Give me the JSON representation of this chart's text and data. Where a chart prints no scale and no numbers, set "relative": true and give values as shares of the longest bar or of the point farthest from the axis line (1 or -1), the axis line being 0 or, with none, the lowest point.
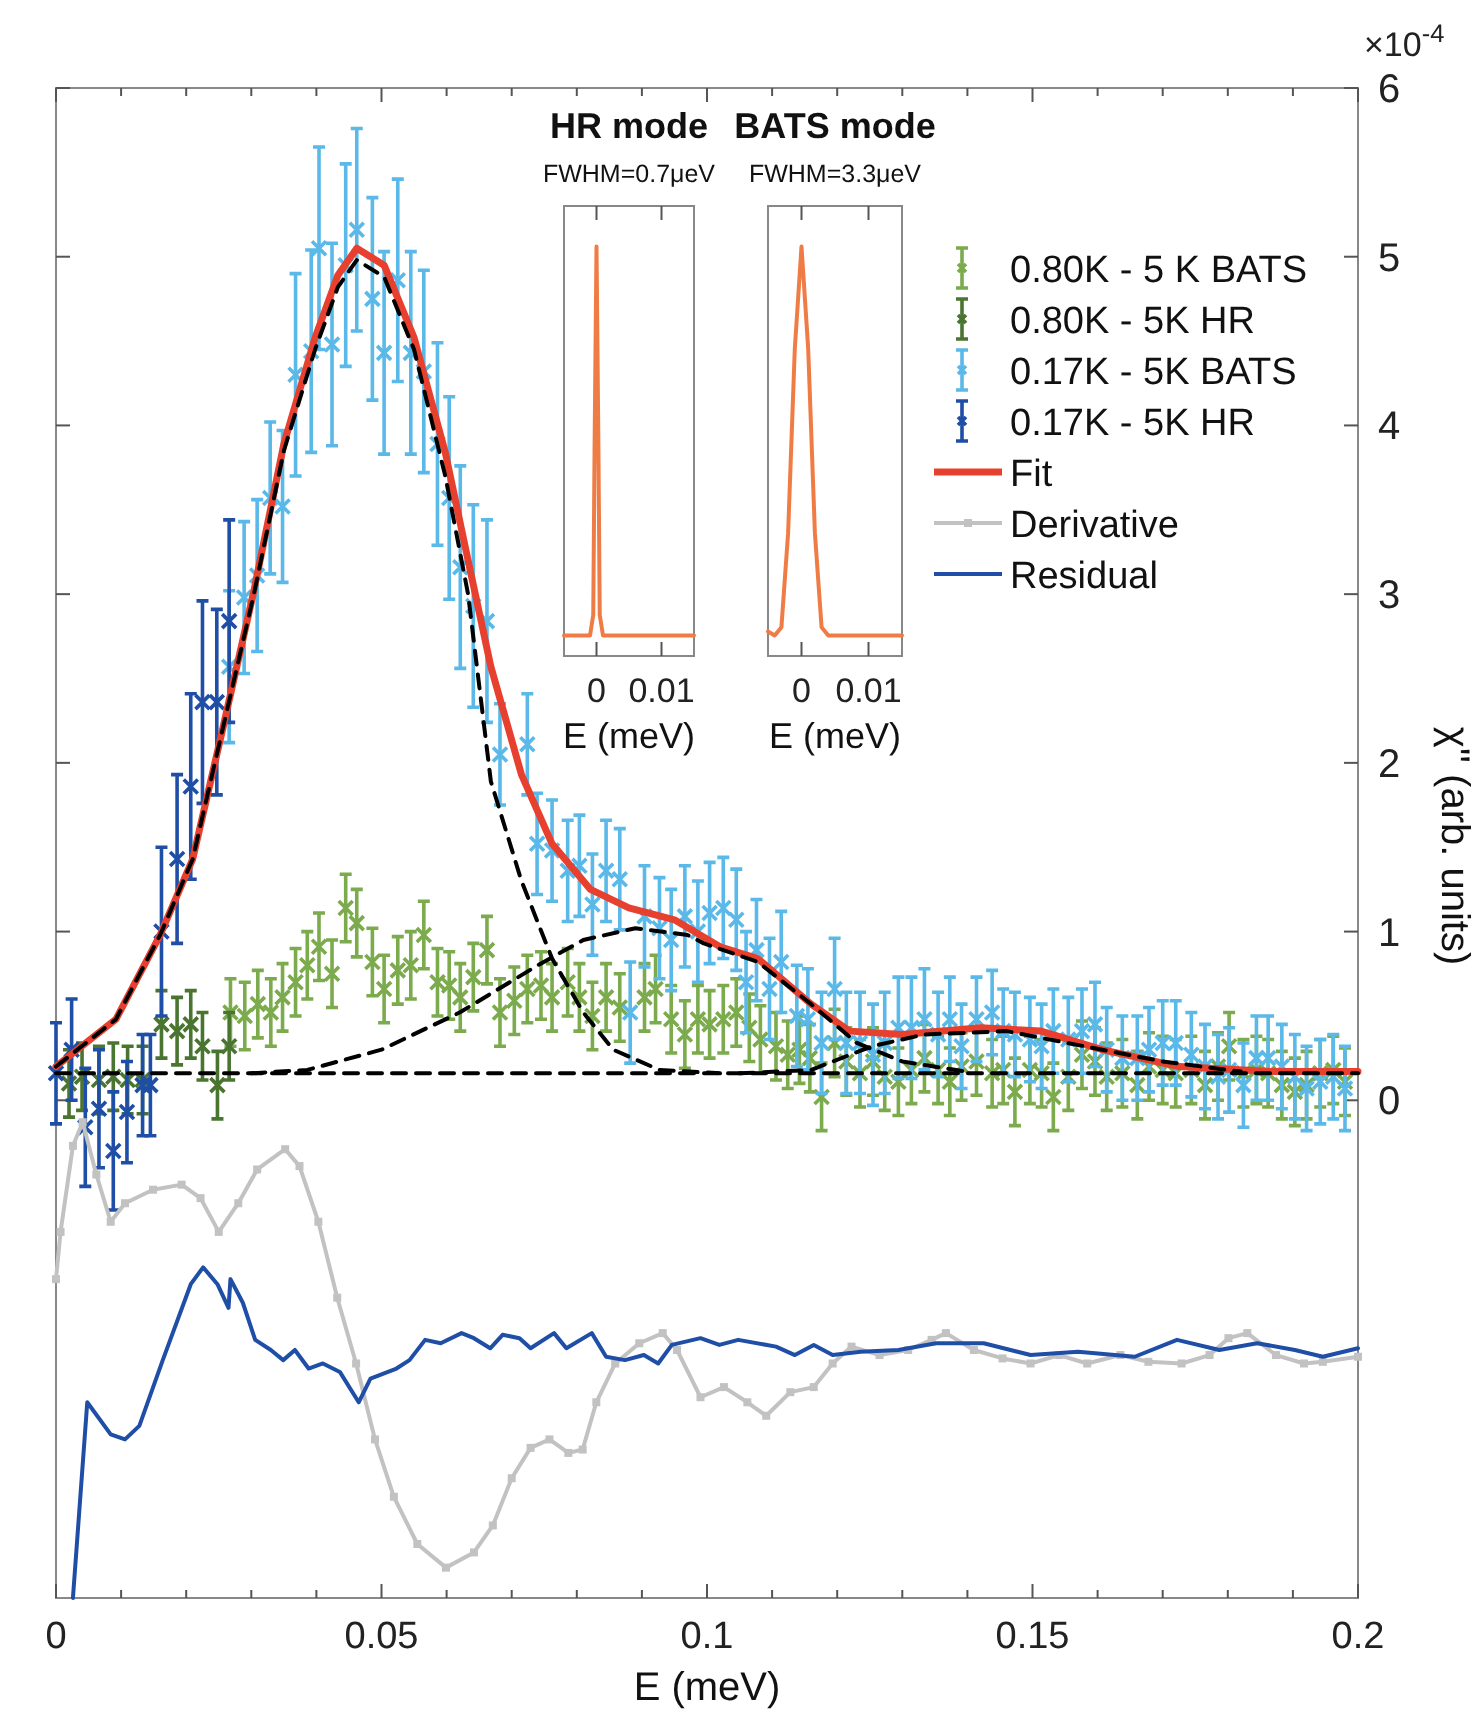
{
  "chart_data": [
    {
      "type": "scatter",
      "xlabel": "E (meV)",
      "ylabel": "χ'' (arb. units)",
      "annotations": [
        "×10$^{-4}$"
      ],
      "xlim": [
        0,
        0.2
      ],
      "ylim": [
        -2.95,
        6
      ],
      "xticks": [
        0,
        {
          "value": 0.01,
          "label": null
        },
        {
          "value": 0.02,
          "label": null
        },
        {
          "value": 0.03,
          "label": null
        },
        {
          "value": 0.04,
          "label": null
        },
        0.05,
        {
          "value": 0.06,
          "label": null
        },
        {
          "value": 0.07,
          "label": null
        },
        {
          "value": 0.08,
          "label": null
        },
        {
          "value": 0.09,
          "label": null
        },
        0.1,
        {
          "value": 0.11,
          "label": null
        },
        {
          "value": 0.12,
          "label": null
        },
        {
          "value": 0.13,
          "label": null
        },
        {
          "value": 0.14,
          "label": null
        },
        0.15,
        {
          "value": 0.16,
          "label": null
        },
        {
          "value": 0.17,
          "label": null
        },
        {
          "value": 0.18,
          "label": null
        },
        {
          "value": 0.19,
          "label": null
        },
        0.2
      ],
      "yticks": [
        0,
        1,
        2,
        3,
        4,
        5,
        6
      ],
      "legend": "top right",
      "marker": "cross",
      "series": [
        {
          "name": "0.80K - 5 K BATS",
          "color": "#7bab4c",
          "x": [
            0.0268,
            0.029,
            0.031,
            0.033,
            0.0348,
            0.0368,
            0.0386,
            0.0404,
            0.0424,
            0.0445,
            0.0462,
            0.0486,
            0.0504,
            0.0525,
            0.0545,
            0.0565,
            0.0586,
            0.0604,
            0.0621,
            0.0641,
            0.0662,
            0.0682,
            0.0704,
            0.0724,
            0.0745,
            0.0762,
            0.0786,
            0.0804,
            0.0824,
            0.0845,
            0.0866,
            0.0904,
            0.0921,
            0.0945,
            0.0966,
            0.0986,
            0.1004,
            0.1025,
            0.1045,
            0.1065,
            0.1082,
            0.1106,
            0.1124,
            0.1142,
            0.1158,
            0.1176,
            0.1196,
            0.1214,
            0.1235,
            0.1255,
            0.1273,
            0.1294,
            0.1314,
            0.1334,
            0.1355,
            0.1373,
            0.1391,
            0.1414,
            0.1438,
            0.1455,
            0.1473,
            0.1496,
            0.1514,
            0.1532,
            0.1555,
            0.1576,
            0.1596,
            0.1614,
            0.1638,
            0.1661,
            0.1679,
            0.17,
            0.172,
            0.1744,
            0.1765,
            0.1785,
            0.1802,
            0.1824,
            0.1844,
            0.1862,
            0.1883,
            0.1903,
            0.1921,
            0.1942,
            0.1962,
            0.198
          ],
          "values": [
            0.52,
            0.5,
            0.57,
            0.52,
            0.61,
            0.7,
            0.8,
            0.91,
            0.75,
            1.14,
            1.05,
            0.82,
            0.66,
            0.77,
            0.8,
            0.98,
            0.7,
            0.68,
            0.61,
            0.73,
            0.89,
            0.52,
            0.59,
            0.66,
            0.68,
            0.61,
            0.7,
            0.61,
            0.5,
            0.61,
            0.55,
            0.61,
            0.66,
            0.48,
            0.39,
            0.48,
            0.45,
            0.48,
            0.52,
            0.43,
            0.36,
            0.32,
            0.27,
            0.3,
            0.25,
            0.02,
            0.34,
            0.23,
            0.16,
            0.23,
            0.14,
            0.11,
            0.18,
            0.25,
            0.18,
            0.11,
            0.2,
            0.23,
            0.16,
            0.18,
            0.05,
            0.18,
            0.16,
            0.02,
            0.14,
            0.27,
            0.23,
            0.14,
            0.16,
            0.09,
            0.2,
            0.18,
            0.16,
            0.18,
            0.09,
            0.2,
            0.32,
            0.16,
            0.18,
            0.16,
            0.09,
            0.05,
            0.09,
            0.16,
            0.18,
            0.11
          ],
          "errors": [
            0.2,
            0.2,
            0.2,
            0.2,
            0.2,
            0.2,
            0.2,
            0.2,
            0.2,
            0.2,
            0.2,
            0.2,
            0.2,
            0.2,
            0.2,
            0.2,
            0.2,
            0.2,
            0.2,
            0.2,
            0.2,
            0.2,
            0.2,
            0.2,
            0.2,
            0.2,
            0.2,
            0.2,
            0.2,
            0.2,
            0.2,
            0.2,
            0.2,
            0.2,
            0.2,
            0.2,
            0.2,
            0.2,
            0.2,
            0.2,
            0.2,
            0.2,
            0.2,
            0.2,
            0.2,
            0.2,
            0.2,
            0.2,
            0.2,
            0.2,
            0.2,
            0.2,
            0.2,
            0.2,
            0.2,
            0.2,
            0.2,
            0.2,
            0.2,
            0.2,
            0.2,
            0.2,
            0.2,
            0.2,
            0.2,
            0.2,
            0.2,
            0.2,
            0.2,
            0.2,
            0.2,
            0.2,
            0.2,
            0.2,
            0.2,
            0.2,
            0.2,
            0.2,
            0.2,
            0.2,
            0.2,
            0.2,
            0.2,
            0.2,
            0.2,
            0.2
          ]
        },
        {
          "name": "0.80K - 5K HR",
          "color": "#4a7530",
          "x": [
            0.002,
            0.004,
            0.0066,
            0.0088,
            0.011,
            0.0133,
            0.0162,
            0.0186,
            0.0207,
            0.0225,
            0.0248,
            0.0266
          ],
          "values": [
            0.1,
            0.14,
            0.12,
            0.14,
            0.12,
            0.12,
            0.45,
            0.41,
            0.45,
            0.32,
            0.09,
            0.32
          ],
          "errors": [
            0.2,
            0.2,
            0.2,
            0.2,
            0.2,
            0.2,
            0.2,
            0.2,
            0.2,
            0.2,
            0.2,
            0.2
          ]
        },
        {
          "name": "0.17K - 5K BATS",
          "color": "#5ab9e8",
          "x": [
            0.0266,
            0.0289,
            0.0309,
            0.0329,
            0.0348,
            0.0368,
            0.0392,
            0.0404,
            0.0424,
            0.0445,
            0.0462,
            0.0486,
            0.0504,
            0.0525,
            0.0545,
            0.0565,
            0.0586,
            0.0604,
            0.0621,
            0.0641,
            0.0662,
            0.0682,
            0.0724,
            0.0739,
            0.0762,
            0.0786,
            0.0804,
            0.0824,
            0.0845,
            0.0866,
            0.0882,
            0.0904,
            0.0927,
            0.0945,
            0.0966,
            0.0986,
            0.1004,
            0.1025,
            0.1045,
            0.106,
            0.1076,
            0.1096,
            0.1114,
            0.1138,
            0.1155,
            0.1176,
            0.1196,
            0.1214,
            0.1235,
            0.1255,
            0.1273,
            0.1294,
            0.1314,
            0.1334,
            0.1355,
            0.1373,
            0.1391,
            0.1414,
            0.1438,
            0.1455,
            0.1473,
            0.1496,
            0.1514,
            0.1532,
            0.1555,
            0.1576,
            0.1596,
            0.1614,
            0.1638,
            0.1661,
            0.1679,
            0.17,
            0.172,
            0.1744,
            0.1765,
            0.1785,
            0.1802,
            0.1824,
            0.1844,
            0.1862,
            0.1883,
            0.1903,
            0.1921,
            0.1942,
            0.1962,
            0.198
          ],
          "values": [
            2.57,
            2.98,
            3.11,
            3.57,
            3.52,
            4.3,
            4.44,
            5.05,
            4.48,
            4.95,
            5.16,
            4.75,
            4.43,
            4.86,
            4.43,
            4.32,
            3.89,
            3.57,
            3.16,
            2.93,
            2.84,
            2.05,
            2.11,
            1.52,
            1.48,
            1.36,
            1.39,
            1.16,
            1.36,
            1.31,
            0.52,
            1.09,
            1.02,
            0.95,
            1.09,
            1.0,
            1.11,
            1.14,
            1.07,
            0.7,
            0.89,
            0.66,
            0.82,
            0.5,
            0.48,
            0.34,
            0.66,
            0.34,
            0.34,
            0.27,
            0.34,
            0.43,
            0.43,
            0.48,
            0.39,
            0.48,
            0.32,
            0.48,
            0.52,
            0.41,
            0.39,
            0.36,
            0.32,
            0.41,
            0.36,
            0.41,
            0.45,
            0.3,
            0.25,
            0.25,
            0.3,
            0.34,
            0.34,
            0.27,
            0.2,
            0.14,
            0.18,
            0.09,
            0.25,
            0.25,
            0.2,
            0.14,
            0.07,
            0.11,
            0.14,
            0.07
          ],
          "errors": [
            0.45,
            0.45,
            0.45,
            0.45,
            0.45,
            0.6,
            0.6,
            0.6,
            0.6,
            0.6,
            0.6,
            0.6,
            0.6,
            0.6,
            0.6,
            0.6,
            0.6,
            0.6,
            0.6,
            0.6,
            0.6,
            0.3,
            0.3,
            0.3,
            0.3,
            0.3,
            0.3,
            0.3,
            0.3,
            0.3,
            0.3,
            0.3,
            0.3,
            0.3,
            0.3,
            0.3,
            0.3,
            0.3,
            0.3,
            0.3,
            0.3,
            0.3,
            0.3,
            0.3,
            0.3,
            0.3,
            0.3,
            0.3,
            0.3,
            0.3,
            0.3,
            0.3,
            0.3,
            0.3,
            0.25,
            0.25,
            0.25,
            0.25,
            0.25,
            0.25,
            0.25,
            0.25,
            0.25,
            0.25,
            0.25,
            0.25,
            0.25,
            0.25,
            0.25,
            0.25,
            0.25,
            0.25,
            0.25,
            0.25,
            0.25,
            0.25,
            0.25,
            0.25,
            0.25,
            0.25,
            0.25,
            0.25,
            0.25,
            0.25,
            0.25,
            0.25
          ]
        },
        {
          "name": "0.17K - 5K HR",
          "color": "#1f4ea6",
          "x": [
            0,
            0.0024,
            0.0045,
            0.0066,
            0.0088,
            0.0109,
            0.0133,
            0.0145,
            0.0162,
            0.0186,
            0.0207,
            0.0225,
            0.0247,
            0.0266
          ],
          "values": [
            0.16,
            0.3,
            -0.16,
            -0.05,
            -0.3,
            -0.07,
            0.09,
            0.09,
            1.0,
            1.43,
            1.86,
            2.36,
            2.36,
            2.84
          ],
          "errors": [
            0.3,
            0.3,
            0.35,
            0.35,
            0.35,
            0.3,
            0.3,
            0.3,
            0.5,
            0.5,
            0.55,
            0.6,
            0.55,
            0.6
          ]
        },
        {
          "name": "Fit",
          "type": "line",
          "color": "#e8402f",
          "marker": "none",
          "x": [
            0,
            0.0092,
            0.016,
            0.021,
            0.0256,
            0.0304,
            0.035,
            0.0398,
            0.0433,
            0.0462,
            0.0504,
            0.055,
            0.0598,
            0.0633,
            0.0668,
            0.0715,
            0.0762,
            0.0821,
            0.088,
            0.095,
            0.102,
            0.1078,
            0.116,
            0.1219,
            0.13,
            0.142,
            0.1513,
            0.1607,
            0.1725,
            0.1866,
            0.2
          ],
          "values": [
            0.2,
            0.48,
            0.98,
            1.43,
            2.2,
            3.02,
            3.89,
            4.52,
            4.89,
            5.05,
            4.95,
            4.52,
            3.84,
            3.2,
            2.57,
            1.93,
            1.52,
            1.25,
            1.14,
            1.07,
            0.91,
            0.84,
            0.57,
            0.41,
            0.39,
            0.43,
            0.41,
            0.3,
            0.2,
            0.17,
            0.17
          ]
        },
        {
          "name": "Derivative",
          "type": "line",
          "color": "#c2c2c2",
          "marker": "square",
          "x": [
            0,
            0.0007,
            0.0026,
            0.0041,
            0.0062,
            0.0084,
            0.0106,
            0.0149,
            0.0193,
            0.0222,
            0.025,
            0.028,
            0.0309,
            0.0352,
            0.0374,
            0.0403,
            0.0432,
            0.0461,
            0.049,
            0.0519,
            0.0555,
            0.0599,
            0.0642,
            0.0671,
            0.07,
            0.0729,
            0.0758,
            0.0787,
            0.0809,
            0.083,
            0.0859,
            0.0896,
            0.0932,
            0.0954,
            0.099,
            0.1026,
            0.1062,
            0.1091,
            0.1128,
            0.1164,
            0.1193,
            0.1222,
            0.1265,
            0.1309,
            0.1345,
            0.1367,
            0.141,
            0.1454,
            0.1497,
            0.1541,
            0.1584,
            0.1635,
            0.1678,
            0.1729,
            0.1772,
            0.1801,
            0.183,
            0.1874,
            0.1917,
            0.1946,
            0.2
          ],
          "values": [
            -1.06,
            -0.78,
            -0.27,
            -0.13,
            -0.44,
            -0.72,
            -0.61,
            -0.53,
            -0.5,
            -0.58,
            -0.78,
            -0.61,
            -0.41,
            -0.29,
            -0.39,
            -0.72,
            -1.17,
            -1.56,
            -2.01,
            -2.35,
            -2.63,
            -2.77,
            -2.68,
            -2.52,
            -2.24,
            -2.06,
            -2.01,
            -2.09,
            -2.07,
            -1.79,
            -1.56,
            -1.44,
            -1.38,
            -1.48,
            -1.76,
            -1.7,
            -1.79,
            -1.87,
            -1.73,
            -1.7,
            -1.56,
            -1.46,
            -1.51,
            -1.48,
            -1.42,
            -1.38,
            -1.48,
            -1.53,
            -1.56,
            -1.51,
            -1.56,
            -1.51,
            -1.55,
            -1.56,
            -1.51,
            -1.41,
            -1.38,
            -1.51,
            -1.56,
            -1.55,
            -1.52
          ]
        },
        {
          "name": "Residual",
          "type": "line",
          "color": "#1f4ea6",
          "marker": "none",
          "x": [
            0.0026,
            0.0048,
            0.0084,
            0.0106,
            0.0128,
            0.0164,
            0.0207,
            0.0226,
            0.0248,
            0.0265,
            0.0268,
            0.0287,
            0.0306,
            0.033,
            0.0349,
            0.0367,
            0.0388,
            0.041,
            0.0436,
            0.0465,
            0.0483,
            0.0523,
            0.0543,
            0.0567,
            0.0591,
            0.0623,
            0.0642,
            0.0667,
            0.0686,
            0.0712,
            0.0729,
            0.0765,
            0.0784,
            0.0823,
            0.0845,
            0.0874,
            0.0903,
            0.0925,
            0.0946,
            0.099,
            0.1019,
            0.1048,
            0.1106,
            0.1135,
            0.1164,
            0.1193,
            0.1236,
            0.1294,
            0.1352,
            0.1425,
            0.1497,
            0.157,
            0.1657,
            0.1722,
            0.1787,
            0.1845,
            0.1903,
            0.1946,
            0.2
          ],
          "values": [
            -2.95,
            -1.79,
            -1.98,
            -2.01,
            -1.93,
            -1.54,
            -1.09,
            -0.99,
            -1.09,
            -1.23,
            -1.06,
            -1.2,
            -1.42,
            -1.48,
            -1.54,
            -1.48,
            -1.59,
            -1.56,
            -1.61,
            -1.79,
            -1.65,
            -1.59,
            -1.54,
            -1.42,
            -1.44,
            -1.38,
            -1.41,
            -1.47,
            -1.39,
            -1.41,
            -1.47,
            -1.38,
            -1.47,
            -1.38,
            -1.52,
            -1.54,
            -1.51,
            -1.56,
            -1.45,
            -1.41,
            -1.45,
            -1.42,
            -1.46,
            -1.51,
            -1.45,
            -1.51,
            -1.49,
            -1.48,
            -1.44,
            -1.44,
            -1.51,
            -1.49,
            -1.52,
            -1.42,
            -1.48,
            -1.44,
            -1.48,
            -1.52,
            -1.47
          ]
        },
        {
          "type": "line",
          "color": "#000000",
          "line_style": "dashed",
          "marker": "none",
          "x": [
            0,
            0.2
          ],
          "values": [
            0.16,
            0.16
          ]
        },
        {
          "type": "line",
          "color": "#000000",
          "line_style": "dashed",
          "marker": "none",
          "x": [
            0,
            0.0092,
            0.016,
            0.021,
            0.0256,
            0.0304,
            0.035,
            0.0398,
            0.0433,
            0.0462,
            0.0504,
            0.055,
            0.0598,
            0.0633,
            0.0668,
            0.0715,
            0.0762,
            0.081,
            0.0856,
            0.0927,
            0.102
          ],
          "values": [
            0.2,
            0.48,
            0.98,
            1.43,
            2.2,
            3.0,
            3.85,
            4.45,
            4.82,
            4.98,
            4.88,
            4.45,
            3.7,
            3.0,
            1.89,
            1.3,
            0.84,
            0.52,
            0.3,
            0.18,
            0.16
          ]
        },
        {
          "type": "line",
          "color": "#000000",
          "line_style": "dashed",
          "marker": "none",
          "x": [
            0.03,
            0.0386,
            0.05,
            0.062,
            0.074,
            0.081,
            0.089,
            0.097,
            0.0995,
            0.1078,
            0.116,
            0.123,
            0.13,
            0.1398
          ],
          "values": [
            0.16,
            0.18,
            0.3,
            0.52,
            0.8,
            0.95,
            1.02,
            0.98,
            0.93,
            0.82,
            0.57,
            0.34,
            0.23,
            0.17
          ]
        },
        {
          "type": "line",
          "color": "#000000",
          "line_style": "dashed",
          "marker": "none",
          "x": [
            0.105,
            0.116,
            0.1253,
            0.1334,
            0.146,
            0.158,
            0.17,
            0.182
          ],
          "values": [
            0.16,
            0.18,
            0.32,
            0.39,
            0.41,
            0.32,
            0.23,
            0.17
          ]
        }
      ]
    },
    {
      "type": "line",
      "title": "HR mode",
      "subtitle": "FWHM=0.7μeV",
      "xlabel": "E (meV)",
      "relative": true,
      "xlim": [
        -0.005,
        0.015
      ],
      "xticks": [
        0,
        0.01
      ],
      "series": [
        {
          "color": "#f07c45",
          "x": [
            -0.005,
            -0.001,
            -0.0005,
            -0.0003,
            0,
            0.0003,
            0.0005,
            0.001,
            0.015
          ],
          "values": [
            0.05,
            0.05,
            0.1,
            0.5,
            1,
            0.5,
            0.1,
            0.05,
            0.05
          ]
        }
      ]
    },
    {
      "type": "line",
      "title": "BATS mode",
      "subtitle": "FWHM=3.3μeV",
      "xlabel": "E (meV)",
      "relative": true,
      "xlim": [
        -0.005,
        0.015
      ],
      "xticks": [
        0,
        0.01
      ],
      "series": [
        {
          "color": "#f07c45",
          "x": [
            -0.005,
            -0.004,
            -0.003,
            -0.002,
            -0.001,
            0,
            0.001,
            0.002,
            0.003,
            0.004,
            0.015
          ],
          "values": [
            0.06,
            0.05,
            0.07,
            0.3,
            0.75,
            1,
            0.75,
            0.3,
            0.07,
            0.05,
            0.05
          ]
        }
      ]
    }
  ]
}
